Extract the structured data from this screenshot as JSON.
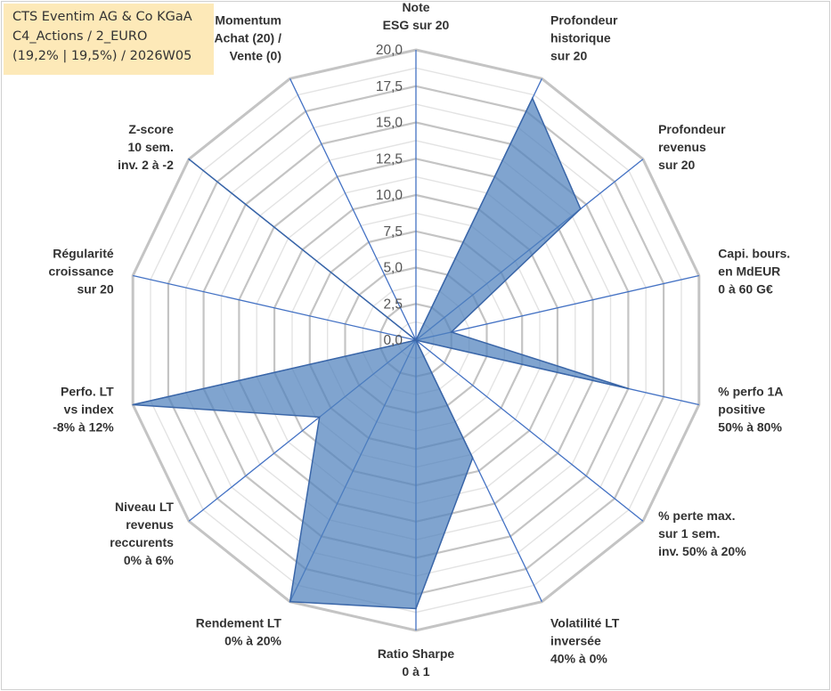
{
  "title_box": {
    "line1": "CTS Eventim AG & Co KGaA",
    "line2": "C4_Actions / 2_EURO",
    "line3": "(19,2% | 19,5%) / 2026W05"
  },
  "chart_data": {
    "type": "radar",
    "r_min": 0,
    "r_max": 20,
    "ticks": [
      "0,0",
      "2,5",
      "5,0",
      "7,5",
      "10,0",
      "12,5",
      "15,0",
      "17,5",
      "20,0"
    ],
    "grid": true,
    "series_color": "#4f81bd",
    "categories": [
      [
        "Note",
        "ESG sur 20"
      ],
      [
        "Profondeur",
        "historique",
        "sur 20"
      ],
      [
        "Profondeur",
        "revenus",
        "sur 20"
      ],
      [
        "Capi. bours.",
        "en MdEUR",
        "0 à 60 G€"
      ],
      [
        "% perfo 1A",
        "positive",
        "50% à 80%"
      ],
      [
        "% perte max.",
        "sur 1 sem.",
        "inv. 50% à 20%"
      ],
      [
        "Volatilité LT",
        "inversée",
        "40% à 0%"
      ],
      [
        "Ratio Sharpe",
        "0 à 1"
      ],
      [
        "Rendement LT",
        "0% à 20%"
      ],
      [
        "Niveau LT",
        "revenus",
        "reccurents",
        "0% à 6%"
      ],
      [
        "Perfo. LT",
        "vs index",
        "-8% à 12%"
      ],
      [
        "Régularité",
        "croissance",
        "sur 20"
      ],
      [
        "Z-score",
        "10 sem.",
        "inv. 2 à -2"
      ],
      [
        "Momentum",
        "Achat (20) /",
        "Vente (0)"
      ]
    ],
    "values": [
      0,
      18.5,
      14.5,
      2.5,
      15.0,
      0,
      9.0,
      18.5,
      20.0,
      8.5,
      20.0,
      0,
      20.0,
      0
    ]
  }
}
